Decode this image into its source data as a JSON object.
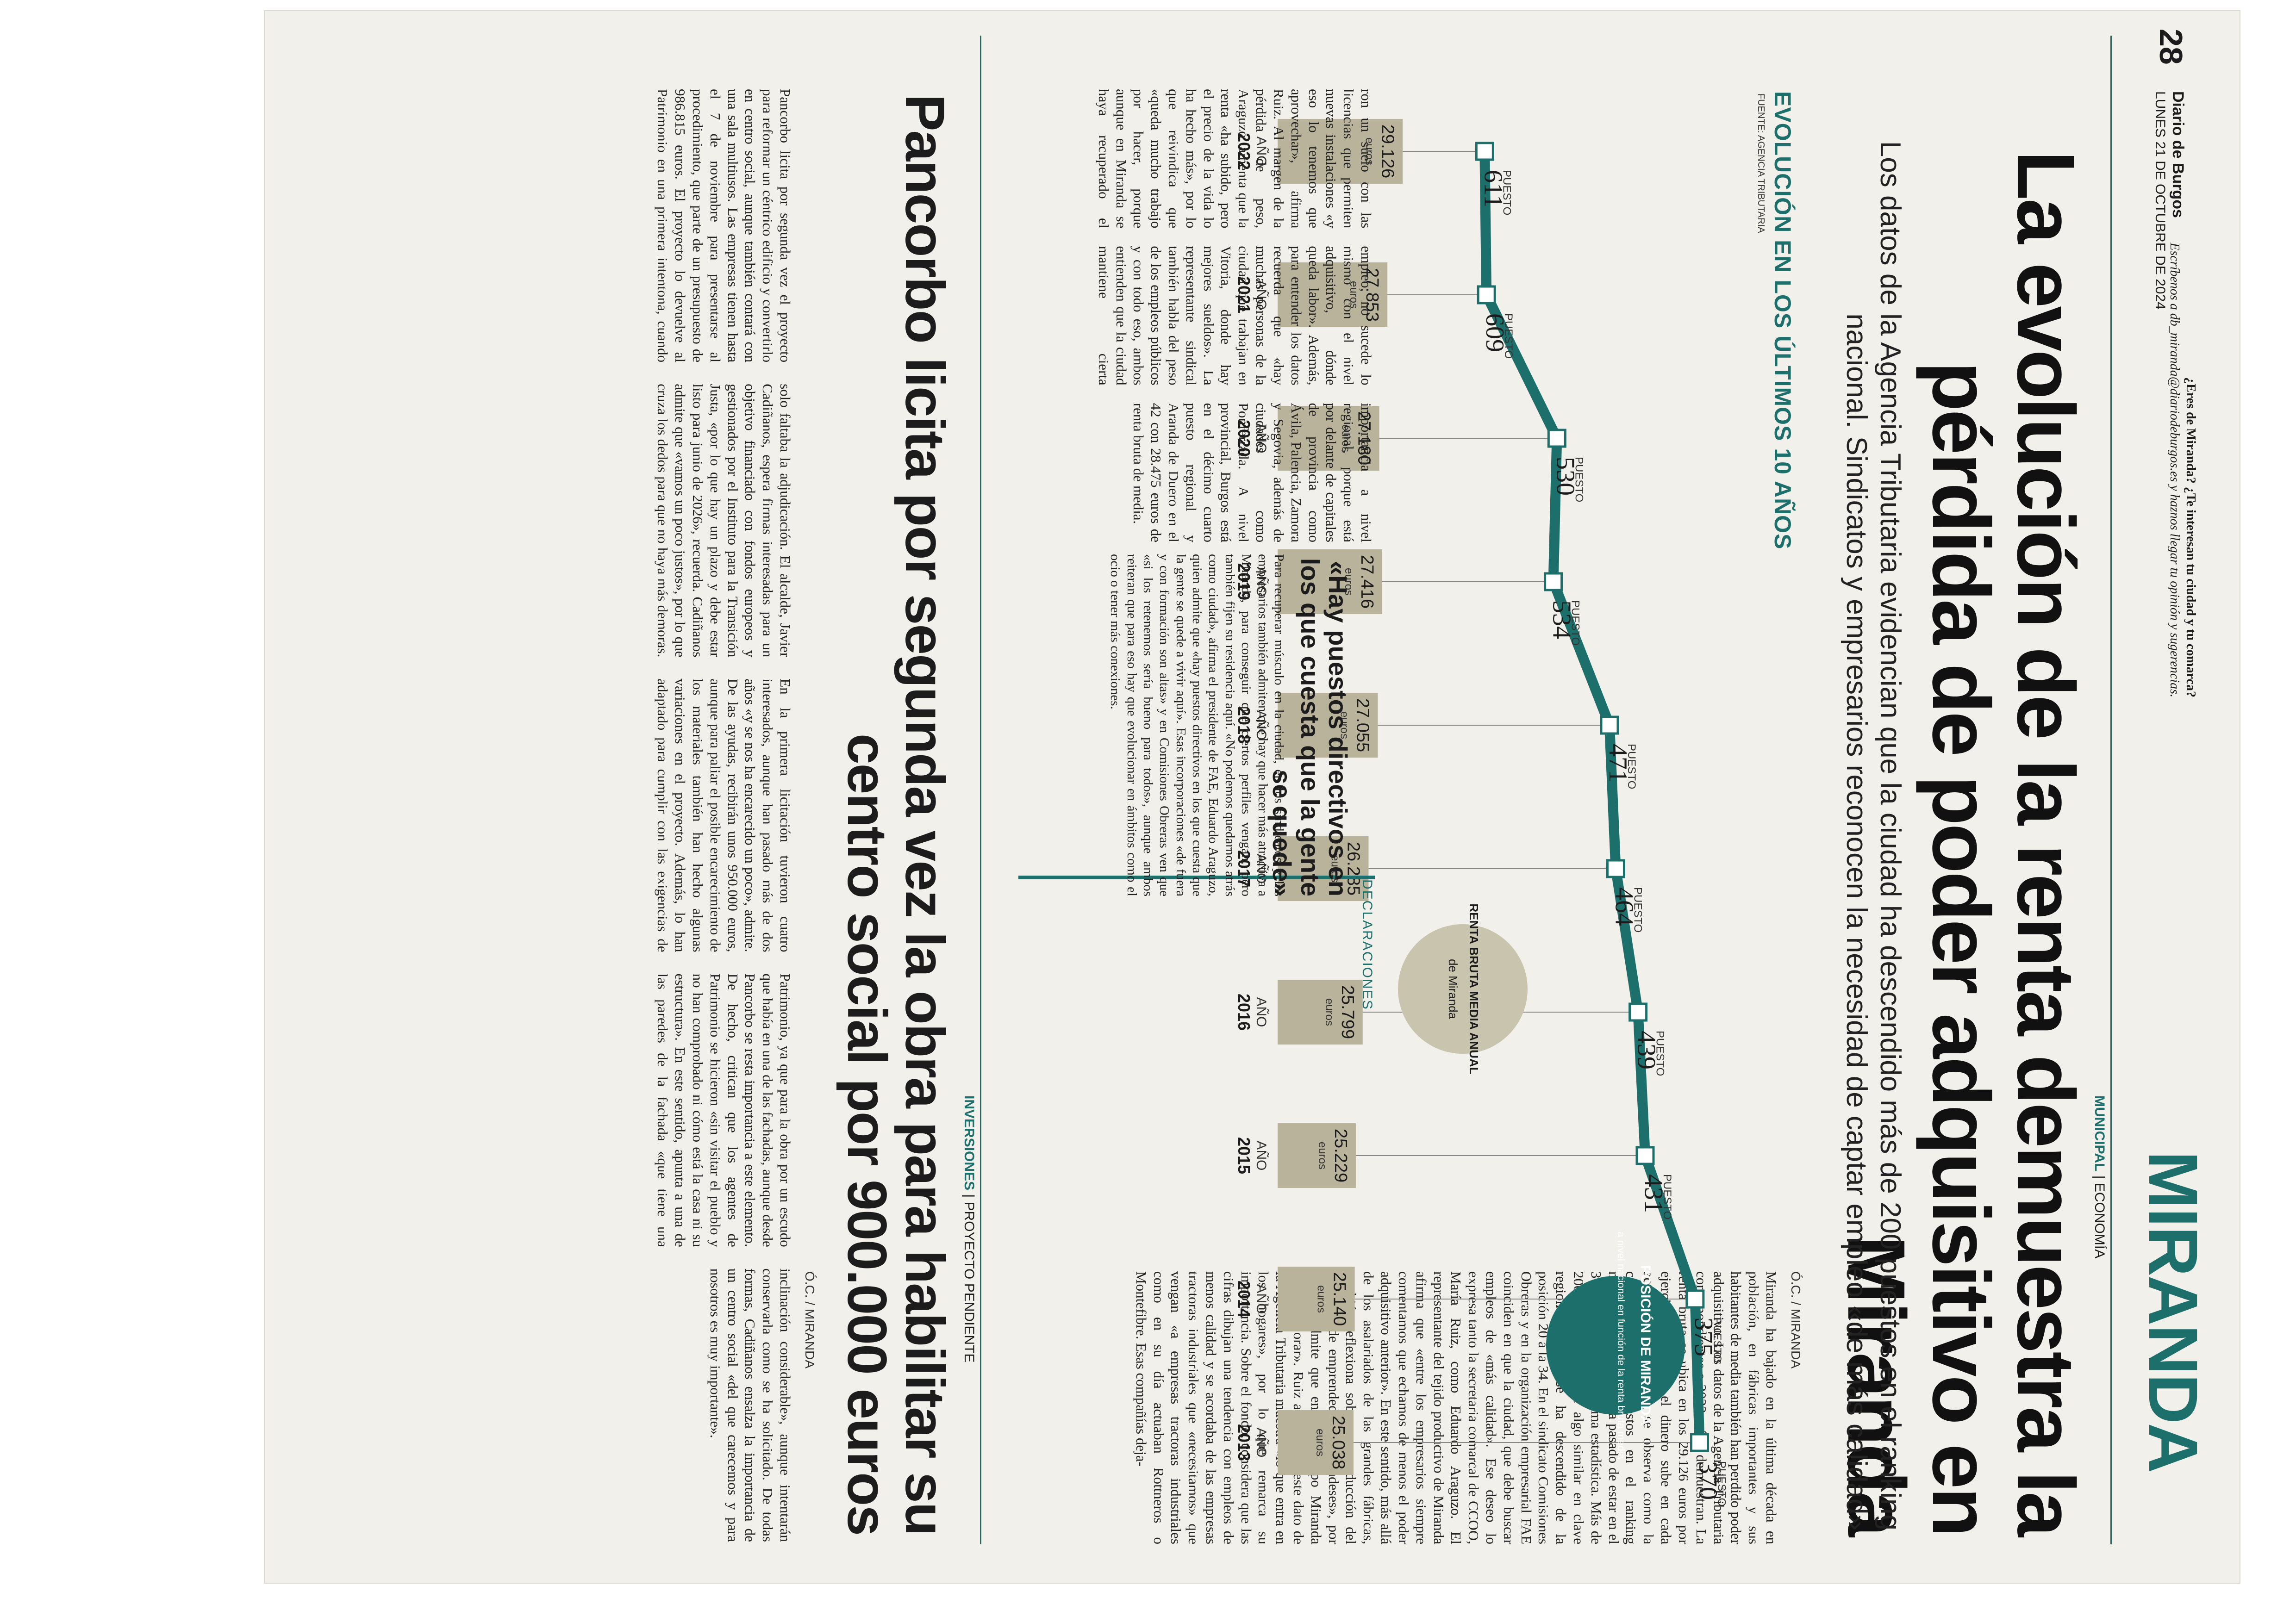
{
  "header": {
    "section": "MIRANDA",
    "paper_name": "Diario de Burgos",
    "date": "LUNES 21 DE OCTUBRE DE 2024",
    "page_number": "28",
    "promo_question": "¿Eres de Miranda? ¿Te interesan tu ciudad y tu comarca?",
    "promo_text": "Escríbenos a db_miranda@diariodeburgos.es y haznos llegar tu opinión y sugerencias."
  },
  "main_article": {
    "kicker_primary": "MUNICIPAL",
    "kicker_secondary": "ECONOMÍA",
    "headline": "La evolución de la renta demuestra la pérdida de poder adquisitivo en Miranda",
    "subheadline": "Los datos de la Agencia Tributaria evidencian que la ciudad ha descendido más de 200 puestos en el ranking nacional. Sindicatos y empresarios reconocen la necesidad de captar empleo «de más calidad»",
    "byline": "Ó.C. / MIRANDA",
    "body_left": "Miranda ha bajado en la última década en población, en fábricas importantes y sus habitantes de media también han perdido poder adquisitivo. Los datos de la Agencia Tributaria correspondientes a 2022 así lo demuestran. La renta bruta se ubica en los 29.126 euros por ejercicio y aunque el dinero sube en cada actualización, también se observa como la ciudad desciende puestos en el ranking nacional. En diez años ha pasado de estar en el 370 al 611 según la última estadística. Más de 200 puestos y ocurre algo similar en clave regional, donde se ha descendido de la posición 20 a la 34. En el sindicato Comisiones Obreras y en la organización empresarial FAE coinciden en que la ciudad, que debe buscar empleos de «más calidad». Ese deseo lo expresa tanto la secretaria comarcal de CCOO, María Ruiz, como Eduardo Araguzo. El representante del tejido productivo de Miranda afirma que «entre los empresarios siempre comentamos que echamos de menos el poder adquisitivo anterior». En este sentido, más allá de los asalariados de las grandes fábricas, también reflexiona sobre una reducción del número «de emprendedores mirandeses», por lo que admite que en este campo Miranda «debe mejorar». Ruiz apunta que este dato de la Agencia Tributaria muestra «lo que entra en los hogares», por lo que remarca su importancia. Sobre el fondo, considera que las cifras dibujan una tendencia con empleos de menos calidad y se acordaba de las empresas tractoras industriales que «necesitamos» que vengan «a empresas tractoras industriales como en su día actuaban Rottneros o Montefibre. Esas compañías deja-",
    "body_right": "ron un suelo con las licencias que permiten nuevas instalaciones «y eso lo tenemos que aprovechar», afirma Ruiz. Al margen de la pérdida de peso, Araguzo lamenta que la renta «ha subido, pero el precio de la vida lo ha hecho más», por lo que reivindica que «queda mucho trabajo por hacer, porque aunque en Miranda se haya recuperado el empleo, no sucede lo mismo con el nivel adquisitivo, dónde queda labor». Además, para entender los datos recuerda que «hay muchas personas de la ciudad que trabajan en Vitoria, donde hay mejores sueldos». La representante sindical también habla del peso de los empleos públicos y con todo eso, ambos entienden que la ciudad mantiene cierta importancia a nivel regional, porque está por delante de capitales de provincia como Ávila, Palencia, Zamora y Segovia, además de ciudades como Ponferrada. A nivel provincial, Burgos está en el décimo cuarto puesto regional y Aranda de Duero en el 42 con 28.475 euros de renta bruta de media."
  },
  "chart_data": {
    "type": "line",
    "title": "EVOLUCIÓN EN LOS ÚLTIMOS 10 AÑOS",
    "source": "FUENTE: AGENCIA TRIBUTARIA",
    "categories": [
      "AÑO 2013",
      "AÑO 2014",
      "AÑO 2015",
      "AÑO 2016",
      "AÑO 2017",
      "AÑO 2018",
      "AÑO 2019",
      "AÑO 2020",
      "AÑO 2021",
      "AÑO 2022"
    ],
    "series": [
      {
        "name": "POSICIÓN DE MIRANDA a nivel nacional en función de la renta bruta media",
        "color": "#1d6f6b",
        "label_prefix": "PUESTO",
        "values": [
          370,
          375,
          431,
          439,
          464,
          471,
          534,
          530,
          609,
          611
        ]
      },
      {
        "name": "RENTA BRUTA MEDIA ANUAL de Miranda",
        "color": "#b9b39c",
        "unit": "euros",
        "values": [
          25038,
          25140,
          25229,
          25799,
          26285,
          27055,
          27416,
          27180,
          27853,
          29126
        ],
        "display": [
          "25.038",
          "25.140",
          "25.229",
          "25.799",
          "26.285",
          "27.055",
          "27.416",
          "27.180",
          "27.853",
          "29.126"
        ]
      }
    ],
    "callout_position": {
      "title": "POSICIÓN DE MIRANDA",
      "text": "a nivel nacional en función de la renta bruta media"
    },
    "callout_income": {
      "title": "RENTA BRUTA MEDIA ANUAL",
      "text": "de Miranda"
    }
  },
  "declarations": {
    "label": "DECLARACIONES",
    "title": "«Hay puestos directivos en los que cuesta que la gente se quede»",
    "body": "Para recuperar músculo en la ciudad, en los sindicatos y los empresarios también admiten que hay que hacer más atractiva a Miranda, para conseguir que ciertos perfiles vengan, pero también fijen su residencia aquí. «No podemos quedarnos atrás como ciudad», afirma el presidente de FAE, Eduardo Araguzo, quien admite que «hay puestos directivos en los que cuesta que la gente se quede a vivir aquí». Esas incorporaciones «de fuera y con formación son altas» y en Comisiones Obreras ven que «si los retenemos sería bueno para todos», aunque ambos reiteran que para eso hay que evolucionar en ámbitos como el ocio o tener más conexiones."
  },
  "second_article": {
    "kicker_primary": "INVERSIONES",
    "kicker_secondary": "PROYECTO PENDIENTE",
    "headline": "Pancorbo licita por segunda vez la obra para habilitar su centro social por 900.000 euros",
    "byline": "Ó.C. / MIRANDA",
    "body": "Pancorbo licita por segunda vez el proyecto para reformar un céntrico edificio y convertirlo en centro social, aunque también contará con una sala multiusos. Las empresas tienen hasta el 7 de noviembre para presentarse al procedimiento, que parte de un presupuesto de 986.815 euros. El proyecto lo devuelve al Patrimonio en una primera intentona, cuando solo faltaba la adjudicación. El alcalde, Javier Cadiñanos, espera firmas interesadas para un objetivo financiado con fondos europeos y gestionados por el Instituto para la Transición Justa, «por lo que hay un plazo y debe estar listo para junio de 2026», recuerda. Cadiñanos admite que «vamos un poco justos», por lo que cruza los dedos para que no haya más demoras. En la primera licitación tuvieron cuatro interesados, aunque han pasado más de dos años «y se nos ha encarecido un poco», admite. De las ayudas, recibirán unos 950.000 euros, aunque para paliar el posible encarecimiento de los materiales también han hecho algunas variaciones en el proyecto. Además, lo han adaptado para cumplir con las exigencias de Patrimonio, ya que para la obra por un escudo que había en una de las fachadas, aunque desde Pancorbo se resta importancia a este elemento. De hecho, critican que los agentes de Patrimonio se hicieron «sin visitar el pueblo y no han comprobado ni cómo está la casa ni su estructura». En este sentido, apunta a una de las paredes de la fachada «que tiene una inclinación considerable», aunque intentarán conservarla como se ha solicitado. De todas formas, Cadiñanos ensalza la importancia de un centro social «del que carecemos y para nosotros es muy importante»."
  }
}
